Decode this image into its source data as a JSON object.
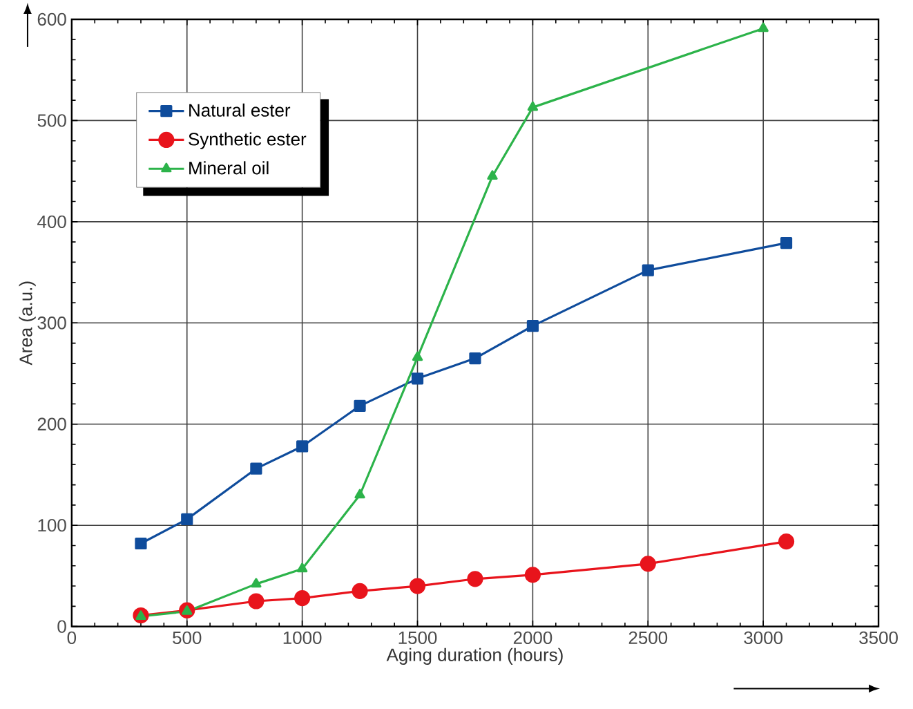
{
  "chart_data": {
    "type": "line",
    "xlabel": "Aging duration (hours)",
    "ylabel": "Area (a.u.)",
    "xlim": [
      0,
      3500
    ],
    "xticks": [
      0,
      500,
      1000,
      1500,
      2000,
      2500,
      3000,
      3500
    ],
    "ylim": [
      0,
      600
    ],
    "yticks": [
      0,
      100,
      200,
      300,
      400,
      500,
      600
    ],
    "grid": true,
    "legend": "top left",
    "series": [
      {
        "name": "Natural ester",
        "color": "#0f4c9c",
        "marker": "square",
        "x": [
          300,
          500,
          800,
          1000,
          1250,
          1500,
          1750,
          2000,
          2500,
          3100
        ],
        "values": [
          82,
          106,
          156,
          178,
          218,
          245,
          265,
          297,
          352,
          379
        ]
      },
      {
        "name": "Synthetic ester",
        "color": "#e8141c",
        "marker": "circle",
        "x": [
          300,
          500,
          800,
          1000,
          1250,
          1500,
          1750,
          2000,
          2500,
          3100
        ],
        "values": [
          11,
          16,
          25,
          28,
          35,
          40,
          47,
          51,
          62,
          84
        ]
      },
      {
        "name": "Mineral oil",
        "color": "#2cb34a",
        "marker": "triangle",
        "x": [
          300,
          500,
          800,
          1000,
          1250,
          1500,
          1825,
          2000,
          3000
        ],
        "values": [
          10,
          15,
          42,
          57,
          130,
          266,
          445,
          513,
          591
        ]
      }
    ]
  }
}
